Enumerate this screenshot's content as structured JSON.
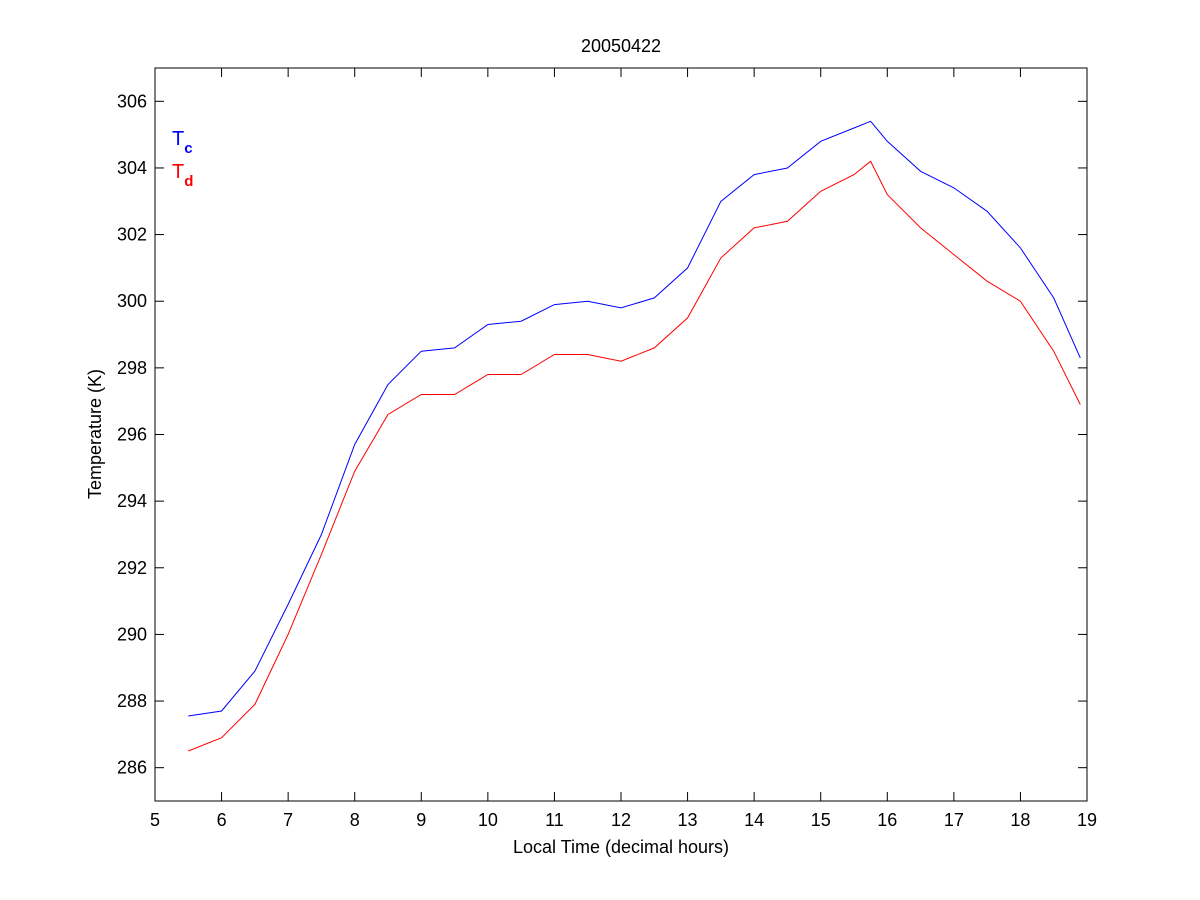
{
  "chart_data": {
    "type": "line",
    "title": "20050422",
    "xlabel": "Local Time (decimal hours)",
    "ylabel": "Temperature (K)",
    "xlim": [
      5,
      19
    ],
    "ylim": [
      285,
      307
    ],
    "xticks": [
      5,
      6,
      7,
      8,
      9,
      10,
      11,
      12,
      13,
      14,
      15,
      16,
      17,
      18,
      19
    ],
    "yticks": [
      286,
      288,
      290,
      292,
      294,
      296,
      298,
      300,
      302,
      304,
      306
    ],
    "grid": false,
    "legend_position": "top-left",
    "x": [
      5.5,
      6.0,
      6.5,
      7.0,
      7.5,
      8.0,
      8.5,
      9.0,
      9.5,
      10.0,
      10.5,
      11.0,
      11.5,
      12.0,
      12.5,
      13.0,
      13.5,
      14.0,
      14.5,
      15.0,
      15.5,
      15.75,
      16.0,
      16.5,
      17.0,
      17.5,
      18.0,
      18.5,
      18.9
    ],
    "series": [
      {
        "name": "T",
        "subscript": "c",
        "color": "#0000ff",
        "values": [
          287.55,
          287.7,
          288.9,
          290.9,
          293.0,
          295.7,
          297.5,
          298.5,
          298.6,
          299.3,
          299.4,
          299.9,
          300.0,
          299.8,
          300.1,
          301.0,
          303.0,
          303.8,
          304.0,
          304.8,
          305.2,
          305.4,
          304.8,
          303.9,
          303.4,
          302.7,
          301.6,
          300.1,
          298.3
        ]
      },
      {
        "name": "T",
        "subscript": "d",
        "color": "#ff0000",
        "values": [
          286.5,
          286.9,
          287.9,
          290.0,
          292.4,
          294.9,
          296.6,
          297.2,
          297.2,
          297.8,
          297.8,
          298.4,
          298.4,
          298.2,
          298.6,
          299.5,
          301.3,
          302.2,
          302.4,
          303.3,
          303.8,
          304.2,
          303.2,
          302.2,
          301.4,
          300.6,
          300.0,
          298.5,
          296.9
        ]
      }
    ]
  }
}
